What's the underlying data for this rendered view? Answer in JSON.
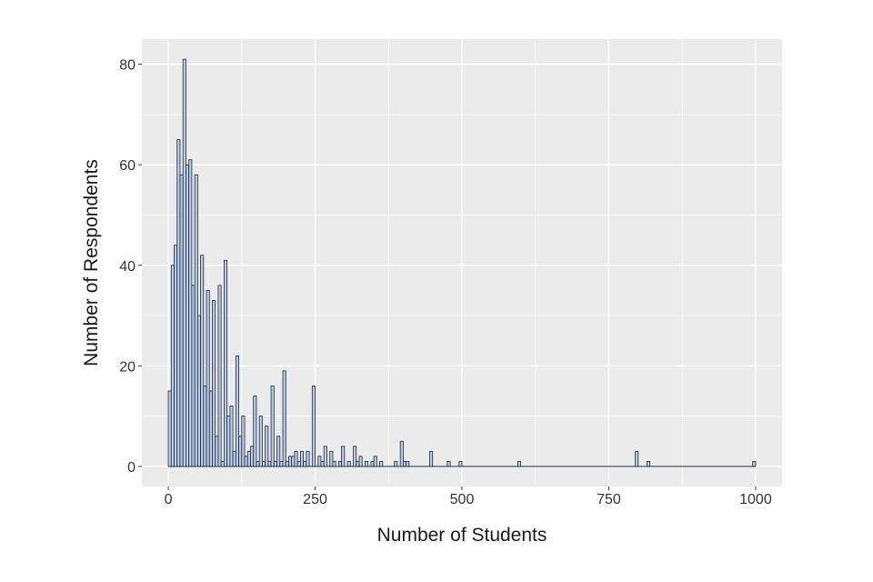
{
  "chart_data": {
    "type": "bar",
    "title": "",
    "xlabel": "Number of Students",
    "ylabel": "Number of Respondents",
    "xlim": [
      -45,
      1045
    ],
    "ylim": [
      -4,
      85
    ],
    "x_ticks": [
      0,
      250,
      500,
      750,
      1000
    ],
    "y_ticks": [
      0,
      20,
      40,
      60,
      80
    ],
    "bin_width": 5,
    "grid": true,
    "legend": "none",
    "colors": {
      "panel": "#ebebeb",
      "grid": "#ffffff",
      "bar_fill": "#b9cbe8",
      "bar_edge": "#1f2a36"
    },
    "bins": [
      {
        "x": 0,
        "count": 15
      },
      {
        "x": 5,
        "count": 40
      },
      {
        "x": 10,
        "count": 44
      },
      {
        "x": 15,
        "count": 65
      },
      {
        "x": 20,
        "count": 58
      },
      {
        "x": 25,
        "count": 81
      },
      {
        "x": 30,
        "count": 60
      },
      {
        "x": 35,
        "count": 61
      },
      {
        "x": 40,
        "count": 36
      },
      {
        "x": 45,
        "count": 58
      },
      {
        "x": 50,
        "count": 30
      },
      {
        "x": 55,
        "count": 42
      },
      {
        "x": 60,
        "count": 16
      },
      {
        "x": 65,
        "count": 35
      },
      {
        "x": 70,
        "count": 15
      },
      {
        "x": 75,
        "count": 33
      },
      {
        "x": 80,
        "count": 6
      },
      {
        "x": 85,
        "count": 36
      },
      {
        "x": 90,
        "count": 1
      },
      {
        "x": 95,
        "count": 41
      },
      {
        "x": 100,
        "count": 10
      },
      {
        "x": 105,
        "count": 12
      },
      {
        "x": 110,
        "count": 3
      },
      {
        "x": 115,
        "count": 22
      },
      {
        "x": 120,
        "count": 6
      },
      {
        "x": 125,
        "count": 10
      },
      {
        "x": 130,
        "count": 2
      },
      {
        "x": 135,
        "count": 3
      },
      {
        "x": 140,
        "count": 4
      },
      {
        "x": 145,
        "count": 14
      },
      {
        "x": 150,
        "count": 1
      },
      {
        "x": 155,
        "count": 10
      },
      {
        "x": 160,
        "count": 1
      },
      {
        "x": 165,
        "count": 8
      },
      {
        "x": 170,
        "count": 1
      },
      {
        "x": 175,
        "count": 16
      },
      {
        "x": 180,
        "count": 1
      },
      {
        "x": 185,
        "count": 6
      },
      {
        "x": 190,
        "count": 1
      },
      {
        "x": 195,
        "count": 19
      },
      {
        "x": 200,
        "count": 1
      },
      {
        "x": 205,
        "count": 2
      },
      {
        "x": 210,
        "count": 2
      },
      {
        "x": 215,
        "count": 3
      },
      {
        "x": 220,
        "count": 1
      },
      {
        "x": 225,
        "count": 3
      },
      {
        "x": 230,
        "count": 1
      },
      {
        "x": 235,
        "count": 3
      },
      {
        "x": 245,
        "count": 16
      },
      {
        "x": 255,
        "count": 2
      },
      {
        "x": 260,
        "count": 1
      },
      {
        "x": 265,
        "count": 4
      },
      {
        "x": 275,
        "count": 3
      },
      {
        "x": 280,
        "count": 1
      },
      {
        "x": 290,
        "count": 1
      },
      {
        "x": 295,
        "count": 4
      },
      {
        "x": 305,
        "count": 1
      },
      {
        "x": 315,
        "count": 4
      },
      {
        "x": 320,
        "count": 1
      },
      {
        "x": 325,
        "count": 2
      },
      {
        "x": 335,
        "count": 1
      },
      {
        "x": 345,
        "count": 1
      },
      {
        "x": 350,
        "count": 2
      },
      {
        "x": 360,
        "count": 1
      },
      {
        "x": 385,
        "count": 1
      },
      {
        "x": 395,
        "count": 5
      },
      {
        "x": 400,
        "count": 1
      },
      {
        "x": 405,
        "count": 1
      },
      {
        "x": 445,
        "count": 3
      },
      {
        "x": 475,
        "count": 1
      },
      {
        "x": 495,
        "count": 1
      },
      {
        "x": 595,
        "count": 1
      },
      {
        "x": 795,
        "count": 3
      },
      {
        "x": 815,
        "count": 1
      },
      {
        "x": 995,
        "count": 1
      }
    ]
  }
}
